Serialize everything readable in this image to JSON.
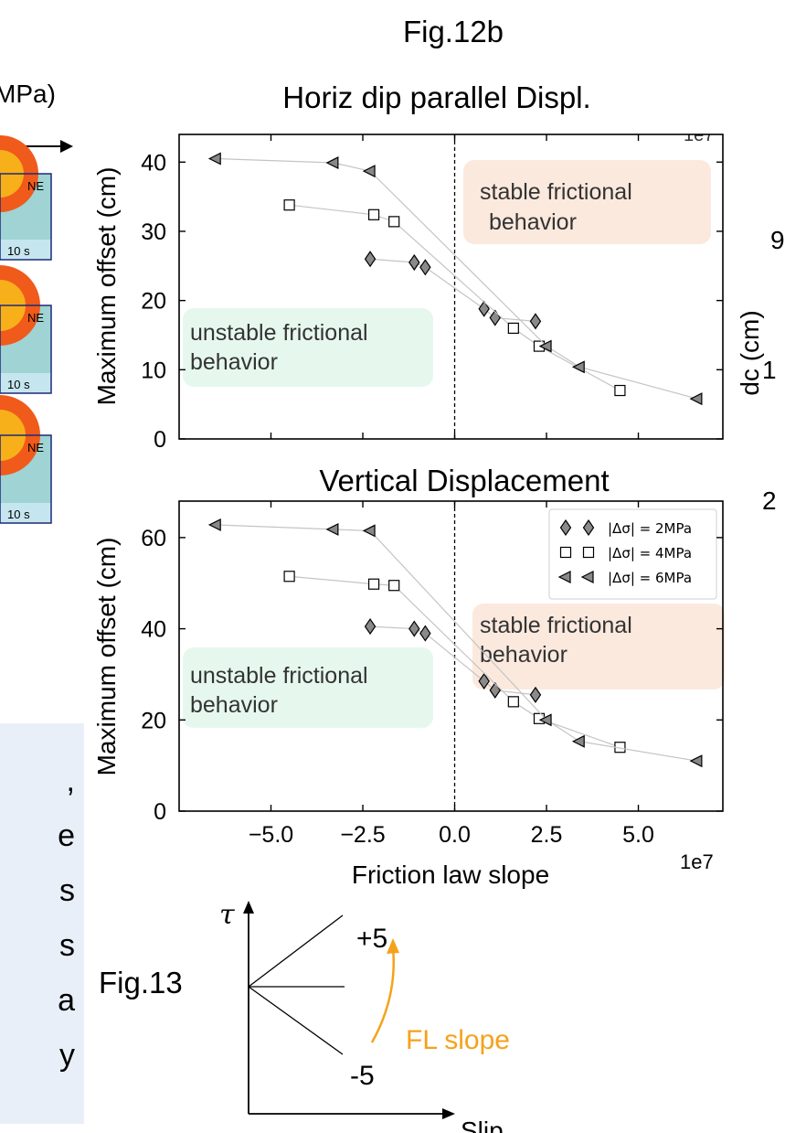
{
  "fig12b_title": "Fig.12b",
  "fig13_title": "Fig.13",
  "left_fragment": {
    "top_label": "MPa)",
    "panel_corner_label": "NE",
    "panel_time_label": "10 s",
    "box_lines": [
      ",",
      "e",
      "s",
      "s",
      "a",
      "y"
    ]
  },
  "right_fragment": {
    "axis_label": "dc (cm)",
    "numbers": [
      "9",
      "1",
      "2"
    ],
    "offset_label": "1e7"
  },
  "chart_data": [
    {
      "type": "scatter",
      "title": "Horiz dip parallel Displ.",
      "xlabel": "",
      "ylabel": "Maximum offset (cm)",
      "xlim": [
        -7.5,
        7.3
      ],
      "ylim": [
        0,
        44
      ],
      "y_ticks": [
        0,
        10,
        20,
        30,
        40
      ],
      "x_ticks": [
        -5.0,
        -2.5,
        0.0,
        2.5,
        5.0
      ],
      "x_tick_labels_visible": false,
      "vline_x": 0.0,
      "annotations": [
        {
          "text": [
            "stable frictional",
            "behavior"
          ],
          "region": "right",
          "color": "#fbe9de"
        },
        {
          "text": [
            "unstable frictional",
            " behavior"
          ],
          "region": "left",
          "color": "#e6f8ee"
        }
      ],
      "series": [
        {
          "marker": "diamond",
          "color": "#8a8a8a",
          "points": [
            [
              -2.3,
              26
            ],
            [
              -1.1,
              25.5
            ],
            [
              -0.8,
              24.8
            ],
            [
              0.8,
              18.8
            ],
            [
              1.1,
              17.5
            ],
            [
              2.2,
              17
            ]
          ]
        },
        {
          "marker": "square",
          "color": "#ffffff",
          "points": [
            [
              -4.5,
              33.8
            ],
            [
              -2.2,
              32.4
            ],
            [
              -1.65,
              31.4
            ],
            [
              1.6,
              16
            ],
            [
              2.3,
              13.4
            ],
            [
              4.5,
              7
            ]
          ]
        },
        {
          "marker": "triangle-left",
          "color": "#888888",
          "points": [
            [
              -6.5,
              40.5
            ],
            [
              -3.3,
              39.9
            ],
            [
              -2.3,
              38.7
            ],
            [
              2.5,
              13.4
            ],
            [
              3.4,
              10.4
            ],
            [
              6.6,
              5.8
            ]
          ]
        }
      ]
    },
    {
      "type": "scatter",
      "title": "Vertical Displacement",
      "xlabel": "Friction law slope",
      "ylabel": "Maximum offset (cm)",
      "xlim": [
        -7.5,
        7.3
      ],
      "ylim": [
        0,
        68
      ],
      "y_ticks": [
        0,
        20,
        40,
        60
      ],
      "x_ticks": [
        -5.0,
        -2.5,
        0.0,
        2.5,
        5.0
      ],
      "x_tick_labels": [
        "−5.0",
        "−2.5",
        "0.0",
        "2.5",
        "5.0"
      ],
      "x_offset_label": "1e7",
      "vline_x": 0.0,
      "legend_position": "top-right",
      "annotations": [
        {
          "text": [
            "stable frictional",
            " behavior"
          ],
          "region": "right",
          "color": "#fbe9de"
        },
        {
          "text": [
            "unstable frictional",
            " behavior"
          ],
          "region": "left",
          "color": "#e6f8ee"
        }
      ],
      "series": [
        {
          "name": "|Δσ| = 2MPa",
          "marker": "diamond",
          "color": "#8a8a8a",
          "points": [
            [
              -2.3,
              40.5
            ],
            [
              -1.1,
              40
            ],
            [
              -0.8,
              39
            ],
            [
              0.8,
              28.5
            ],
            [
              1.1,
              26.5
            ],
            [
              2.2,
              25.5
            ]
          ]
        },
        {
          "name": "|Δσ| = 4MPa",
          "marker": "square",
          "color": "#ffffff",
          "points": [
            [
              -4.5,
              51.5
            ],
            [
              -2.2,
              49.8
            ],
            [
              -1.65,
              49.5
            ],
            [
              1.6,
              24
            ],
            [
              2.3,
              20.3
            ],
            [
              4.5,
              14
            ]
          ]
        },
        {
          "name": "|Δσ| = 6MPa",
          "marker": "triangle-left",
          "color": "#888888",
          "points": [
            [
              -6.5,
              62.8
            ],
            [
              -3.3,
              61.8
            ],
            [
              -2.3,
              61.5
            ],
            [
              2.5,
              20
            ],
            [
              3.4,
              15.3
            ],
            [
              6.6,
              11
            ]
          ]
        }
      ]
    }
  ],
  "fig13_diagram": {
    "y_axis_label": "τ",
    "x_axis_label": "Slip",
    "top_label": "+5",
    "bottom_label": "-5",
    "arrow_label": "FL slope",
    "arrow_color": "#f5a21b"
  }
}
